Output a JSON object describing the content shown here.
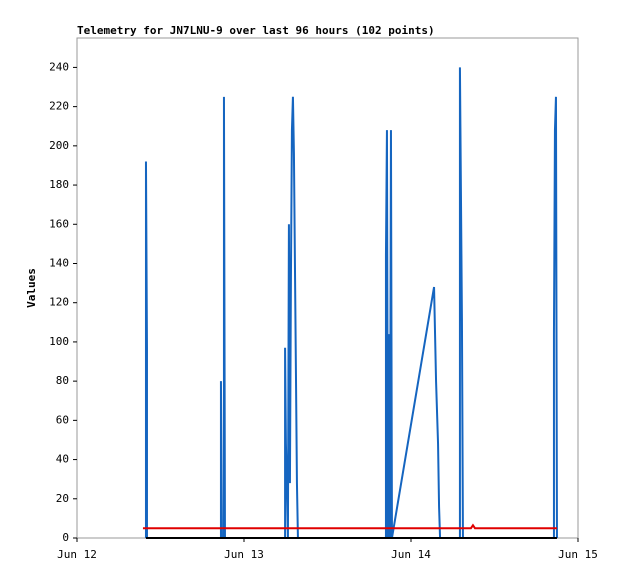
{
  "chart_data": {
    "type": "line",
    "title": "Telemetry for JN7LNU-9 over last 96 hours (102 points)",
    "y_label": "Values",
    "xlim": [
      12,
      15
    ],
    "xticks": [
      {
        "value": 12,
        "label": "Jun 12"
      },
      {
        "value": 13,
        "label": "Jun 13"
      },
      {
        "value": 14,
        "label": "Jun 14"
      },
      {
        "value": 15,
        "label": "Jun 15"
      }
    ],
    "ylim": [
      0,
      255
    ],
    "yticks": [
      0,
      20,
      40,
      60,
      80,
      100,
      120,
      140,
      160,
      180,
      200,
      220,
      240
    ],
    "grid": false,
    "series": [
      {
        "color": "#1565c0",
        "x": [
          12.413,
          12.413,
          12.419,
          12.419,
          12.862,
          12.862,
          12.868,
          12.88,
          12.88,
          12.886,
          13.246,
          13.246,
          13.251,
          13.263,
          13.269,
          13.275,
          13.281,
          13.287,
          13.293,
          13.299,
          13.305,
          13.311,
          13.317,
          13.323,
          13.85,
          13.85,
          13.856,
          13.862,
          13.868,
          13.874,
          13.88,
          13.886,
          14.138,
          14.15,
          14.162,
          14.168,
          14.174,
          14.293,
          14.293,
          14.305,
          14.311,
          14.856,
          14.856,
          14.862,
          14.868,
          14.874
        ],
        "values": [
          0,
          192,
          97,
          0,
          0,
          80,
          0,
          0,
          225,
          0,
          0,
          97,
          48,
          0,
          160,
          28,
          133,
          208,
          225,
          196,
          140,
          84,
          28,
          0,
          0,
          144,
          208,
          0,
          104,
          0,
          208,
          0,
          128,
          80,
          48,
          16,
          0,
          0,
          240,
          112,
          0,
          0,
          104,
          208,
          225,
          0
        ]
      },
      {
        "color": "#e00000",
        "x": [
          12.395,
          14.359,
          14.371,
          14.383,
          14.874
        ],
        "values": [
          5,
          5,
          6.5,
          5,
          5
        ]
      },
      {
        "color": "#000000",
        "x": [
          12.413,
          14.874
        ],
        "values": [
          0,
          0
        ]
      }
    ]
  }
}
